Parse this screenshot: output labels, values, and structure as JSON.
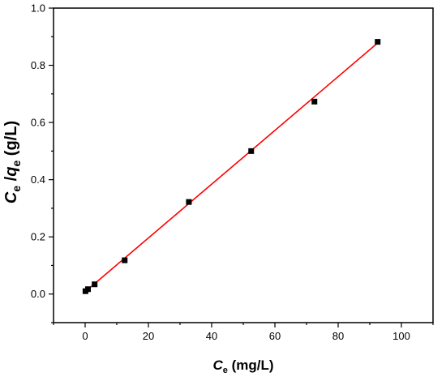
{
  "chart_data": {
    "type": "scatter",
    "title": "",
    "xlabel": {
      "main": "C",
      "sub": "e",
      "rest": " (mg/L)"
    },
    "ylabel": {
      "c": "C",
      "c_sub": "e",
      "slash": " /",
      "q": "q",
      "q_sub": "e",
      "rest": " (g/L)"
    },
    "xlim": [
      -10,
      110
    ],
    "ylim": [
      -0.1,
      1.0
    ],
    "xticks": [
      0,
      20,
      40,
      60,
      80,
      100
    ],
    "xtick_labels": [
      "0",
      "20",
      "40",
      "60",
      "80",
      "100"
    ],
    "yticks": [
      0.0,
      0.2,
      0.4,
      0.6,
      0.8,
      1.0
    ],
    "ytick_labels": [
      "0.0",
      "0.2",
      "0.4",
      "0.6",
      "0.8",
      "1.0"
    ],
    "grid": false,
    "points": [
      {
        "x": 0.1,
        "y": 0.01
      },
      {
        "x": 0.9,
        "y": 0.017
      },
      {
        "x": 3.0,
        "y": 0.034
      },
      {
        "x": 12.5,
        "y": 0.118
      },
      {
        "x": 32.8,
        "y": 0.322
      },
      {
        "x": 52.5,
        "y": 0.5
      },
      {
        "x": 72.5,
        "y": 0.673
      },
      {
        "x": 92.5,
        "y": 0.882
      }
    ],
    "fit_line": {
      "x": [
        0,
        92.5
      ],
      "y": [
        0.008,
        0.878
      ]
    },
    "colors": {
      "points": "#000000",
      "fit": "#ff0000",
      "axis": "#000000"
    }
  }
}
